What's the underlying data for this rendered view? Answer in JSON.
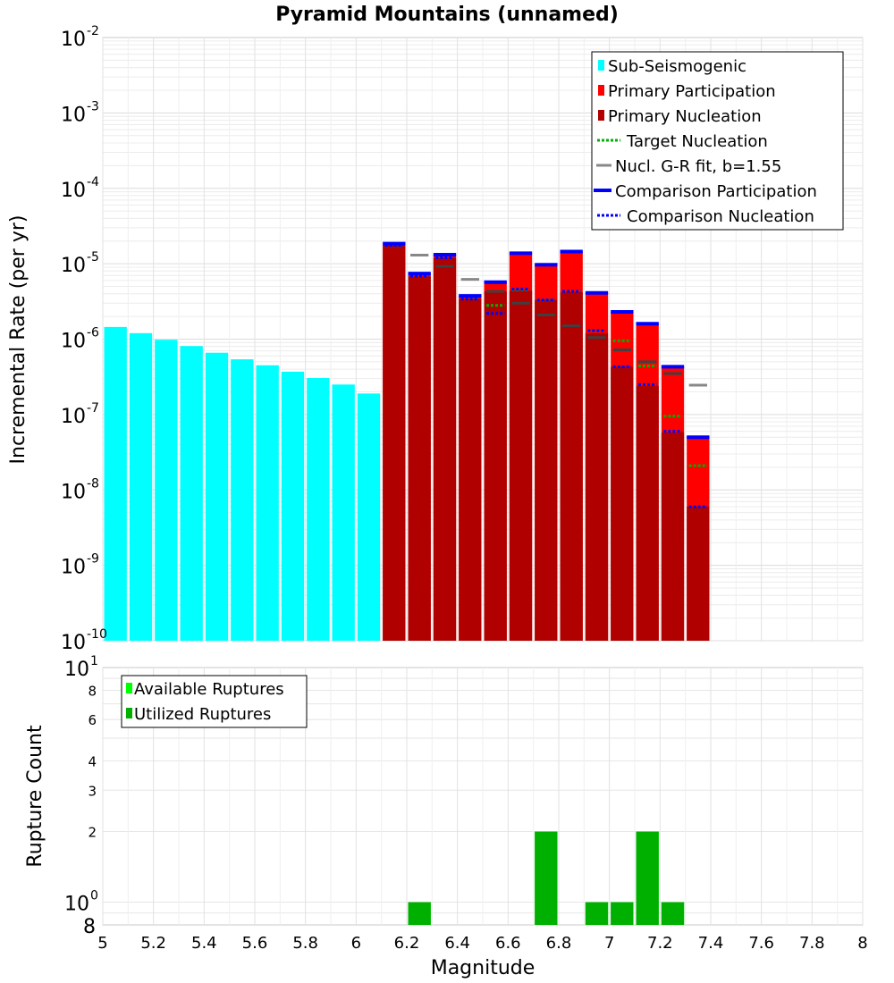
{
  "chart_data": [
    {
      "type": "bar",
      "title": "Pyramid Mountains (unnamed)",
      "xlabel": "",
      "ylabel": "Incremental Rate (per yr)",
      "yscale": "log",
      "ylim": [
        1e-10,
        0.01
      ],
      "xlim": [
        5,
        8
      ],
      "legend_position": "top-right",
      "decade_labels": [
        {
          "base": "10",
          "exp": "-10"
        },
        {
          "base": "10",
          "exp": "-9"
        },
        {
          "base": "10",
          "exp": "-8"
        },
        {
          "base": "10",
          "exp": "-7"
        },
        {
          "base": "10",
          "exp": "-6"
        },
        {
          "base": "10",
          "exp": "-5"
        },
        {
          "base": "10",
          "exp": "-4"
        },
        {
          "base": "10",
          "exp": "-3"
        },
        {
          "base": "10",
          "exp": "-2"
        }
      ],
      "legend": [
        "Sub-Seismogenic",
        "Primary Participation",
        "Primary Nucleation",
        "Target Nucleation",
        "Nucl. G-R fit, b=1.55",
        "Comparison Participation",
        "Comparison Nucleation"
      ],
      "colors": {
        "sub_seismogenic": "#00ffff",
        "primary_participation": "#ff0000",
        "primary_nucleation": "#b00000",
        "target_nucleation": "#00b000",
        "gr_fit": "#888888",
        "comparison_participation": "#0000ff",
        "comparison_nucleation": "#0000ff"
      },
      "series": [
        {
          "name": "Sub-Seismogenic",
          "x": [
            5.05,
            5.15,
            5.25,
            5.35,
            5.45,
            5.55,
            5.65,
            5.75,
            5.85,
            5.95,
            6.05
          ],
          "values": [
            1.45e-06,
            1.2e-06,
            9.8e-07,
            8.1e-07,
            6.6e-07,
            5.4e-07,
            4.5e-07,
            3.7e-07,
            3.05e-07,
            2.5e-07,
            1.9e-07
          ]
        },
        {
          "name": "Primary Participation",
          "x": [
            6.15,
            6.25,
            6.35,
            6.45,
            6.55,
            6.65,
            6.75,
            6.85,
            6.95,
            7.05,
            7.15,
            7.25,
            7.35
          ],
          "values": [
            1.85e-05,
            7.4e-06,
            1.32e-05,
            3.75e-06,
            5.7e-06,
            1.38e-05,
            9.7e-06,
            1.45e-05,
            4.1e-06,
            2.3e-06,
            1.6e-06,
            4.3e-07,
            5e-08
          ]
        },
        {
          "name": "Primary Nucleation",
          "x": [
            6.15,
            6.25,
            6.35,
            6.45,
            6.55,
            6.65,
            6.75,
            6.85,
            6.95,
            7.05,
            7.15,
            7.25,
            7.35
          ],
          "values": [
            1.75e-05,
            6.8e-06,
            1.2e-05,
            3.4e-06,
            4.3e-06,
            4.4e-06,
            3.3e-06,
            4.2e-06,
            1.2e-06,
            4.3e-07,
            2.4e-07,
            5.8e-08,
            6e-09
          ]
        },
        {
          "name": "Target Nucleation",
          "x": [
            6.15,
            6.25,
            6.35,
            6.45,
            6.55,
            6.65,
            6.75,
            6.85,
            6.95,
            7.05,
            7.15,
            7.25,
            7.35
          ],
          "values": [
            1.75e-05,
            6.8e-06,
            1.25e-05,
            3.5e-06,
            2.8e-06,
            4.5e-06,
            3.3e-06,
            4.3e-06,
            1.3e-06,
            9.5e-07,
            4.4e-07,
            9.5e-08,
            2.1e-08
          ]
        },
        {
          "name": "Nucl. G-R fit, b=1.55",
          "x": [
            6.15,
            6.25,
            6.35,
            6.45,
            6.55,
            6.65,
            6.75,
            6.85,
            6.95,
            7.05,
            7.15,
            7.25,
            7.35
          ],
          "values": [
            1.85e-05,
            1.3e-05,
            9.2e-06,
            6.2e-06,
            4.3e-06,
            3e-06,
            2.1e-06,
            1.5e-06,
            1.05e-06,
            7.2e-07,
            5e-07,
            3.5e-07,
            2.45e-07
          ]
        },
        {
          "name": "Comparison Participation",
          "x": [
            6.15,
            6.25,
            6.35,
            6.45,
            6.55,
            6.65,
            6.75,
            6.85,
            6.95,
            7.05,
            7.15,
            7.25,
            7.35
          ],
          "values": [
            1.85e-05,
            7.4e-06,
            1.32e-05,
            3.75e-06,
            5.7e-06,
            1.38e-05,
            9.7e-06,
            1.45e-05,
            4.1e-06,
            2.3e-06,
            1.6e-06,
            4.3e-07,
            5e-08
          ]
        },
        {
          "name": "Comparison Nucleation",
          "x": [
            6.15,
            6.25,
            6.35,
            6.45,
            6.55,
            6.65,
            6.75,
            6.85,
            6.95,
            7.05,
            7.15,
            7.25,
            7.35
          ],
          "values": [
            1.75e-05,
            6.8e-06,
            1.2e-05,
            3.4e-06,
            2.2e-06,
            4.6e-06,
            3.3e-06,
            4.3e-06,
            1.3e-06,
            4.3e-07,
            2.5e-07,
            6e-08,
            6e-09
          ]
        }
      ]
    },
    {
      "type": "bar",
      "title": "",
      "xlabel": "Magnitude",
      "ylabel": "Rupture Count",
      "yscale": "log",
      "ylim": [
        0.8,
        10
      ],
      "xlim": [
        5,
        8
      ],
      "legend_position": "top-left",
      "x_ticks": [
        "5",
        "5.2",
        "5.4",
        "5.6",
        "5.8",
        "6",
        "6.2",
        "6.4",
        "6.6",
        "6.8",
        "7",
        "7.2",
        "7.4",
        "7.6",
        "7.8",
        "8"
      ],
      "y_ticks": [
        {
          "value": 8,
          "label": "8"
        },
        {
          "value": 6,
          "label": "6"
        },
        {
          "value": 4,
          "label": "4"
        },
        {
          "value": 3,
          "label": "3"
        },
        {
          "value": 2,
          "label": "2"
        }
      ],
      "decade_labels": [
        {
          "value": 10,
          "base": "10",
          "exp": "1"
        },
        {
          "value": 1,
          "base": "10",
          "exp": "0"
        }
      ],
      "bottom_label": "8",
      "legend": [
        "Available Ruptures",
        "Utilized Ruptures"
      ],
      "colors": {
        "available": "#00ff00",
        "utilized": "#00b000"
      },
      "series": [
        {
          "name": "Available Ruptures",
          "x": [
            6.25,
            6.75,
            6.95,
            7.05,
            7.15,
            7.25
          ],
          "values": [
            1,
            2,
            1,
            1,
            2,
            1
          ]
        },
        {
          "name": "Utilized Ruptures",
          "x": [
            6.25,
            6.75,
            6.95,
            7.05,
            7.15,
            7.25
          ],
          "values": [
            1,
            2,
            1,
            1,
            2,
            1
          ]
        }
      ]
    }
  ]
}
